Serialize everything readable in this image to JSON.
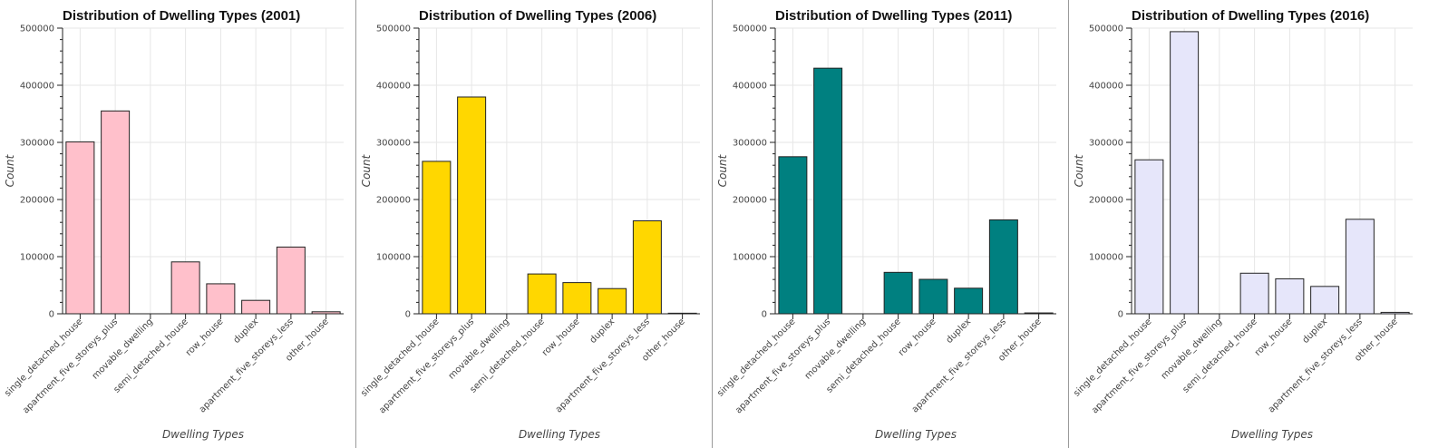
{
  "chart_data": [
    {
      "type": "bar",
      "title": "Distribution of Dwelling Types (2001)",
      "xlabel": "Dwelling Types",
      "ylabel": "Count",
      "ylim": [
        0,
        500000
      ],
      "yticks": [
        "0",
        "100000",
        "200000",
        "300000",
        "400000",
        "500000"
      ],
      "grid": true,
      "bar_color": "#ffc0cb",
      "categories": [
        "single_detached_house",
        "apartment_five_storeys_plus",
        "movable_dwelling",
        "semi_detached_house",
        "row_house",
        "duplex",
        "apartment_five_storeys_less",
        "other_house"
      ],
      "values": [
        300900,
        355000,
        0,
        90800,
        52500,
        23500,
        116800,
        3500
      ]
    },
    {
      "type": "bar",
      "title": "Distribution of Dwelling Types (2006)",
      "xlabel": "Dwelling Types",
      "ylabel": "Count",
      "ylim": [
        0,
        500000
      ],
      "yticks": [
        "0",
        "100000",
        "200000",
        "300000",
        "400000",
        "500000"
      ],
      "grid": true,
      "bar_color": "#ffd700",
      "categories": [
        "single_detached_house",
        "apartment_five_storeys_plus",
        "movable_dwelling",
        "semi_detached_house",
        "row_house",
        "duplex",
        "apartment_five_storeys_less",
        "other_house"
      ],
      "values": [
        266800,
        379400,
        0,
        69700,
        54600,
        44100,
        162700,
        1000
      ]
    },
    {
      "type": "bar",
      "title": "Distribution of Dwelling Types (2011)",
      "xlabel": "Dwelling Types",
      "ylabel": "Count",
      "ylim": [
        0,
        500000
      ],
      "yticks": [
        "0",
        "100000",
        "200000",
        "300000",
        "400000",
        "500000"
      ],
      "grid": true,
      "bar_color": "#008080",
      "categories": [
        "single_detached_house",
        "apartment_five_storeys_plus",
        "movable_dwelling",
        "semi_detached_house",
        "row_house",
        "duplex",
        "apartment_five_storeys_less",
        "other_house"
      ],
      "values": [
        274900,
        429900,
        0,
        72500,
        60300,
        44800,
        164400,
        1500
      ]
    },
    {
      "type": "bar",
      "title": "Distribution of Dwelling Types (2016)",
      "xlabel": "Dwelling Types",
      "ylabel": "Count",
      "ylim": [
        0,
        500000
      ],
      "yticks": [
        "0",
        "100000",
        "200000",
        "300000",
        "400000",
        "500000"
      ],
      "grid": true,
      "bar_color": "#e6e6fa",
      "categories": [
        "single_detached_house",
        "apartment_five_storeys_plus",
        "movable_dwelling",
        "semi_detached_house",
        "row_house",
        "duplex",
        "apartment_five_storeys_less",
        "other_house"
      ],
      "values": [
        269500,
        493800,
        0,
        71000,
        61200,
        47900,
        165400,
        2500
      ]
    }
  ]
}
